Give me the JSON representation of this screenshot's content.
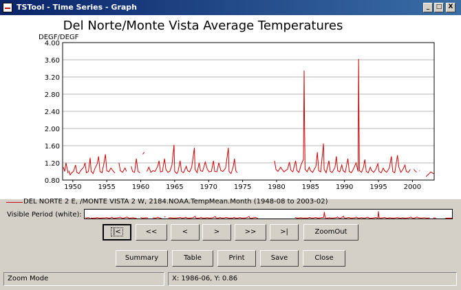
{
  "window": {
    "title": "TSTool - Time Series - Graph",
    "controls": [
      "_",
      "□",
      "X"
    ]
  },
  "chart_data": {
    "type": "line",
    "title": "Del Norte/Monte Vista Average Temperatures",
    "ylabel": "DEGF/DEGF",
    "xlabel": "",
    "ylim": [
      0.8,
      4.0
    ],
    "xlim": [
      1948.5,
      2003.2
    ],
    "y_ticks": [
      "0.80",
      "1.20",
      "1.60",
      "2.00",
      "2.40",
      "2.80",
      "3.20",
      "3.60",
      "4.00"
    ],
    "x_ticks": [
      "1950",
      "1955",
      "1960",
      "1965",
      "1970",
      "1975",
      "1980",
      "1985",
      "1990",
      "1995",
      "2000"
    ],
    "grid": true,
    "series": [
      {
        "name": "DEL NORTE 2 E, /MONTE VISTA 2 W, 2184.NOAA.TempMean.Month (1948-08 to 2003-02)",
        "color": "#d00000",
        "segments": [
          [
            [
              1948.6,
              1.1
            ],
            [
              1948.8,
              1.0
            ],
            [
              1949.0,
              1.2
            ],
            [
              1949.1,
              1.12
            ],
            [
              1949.3,
              0.96
            ]
          ],
          [
            [
              1949.4,
              1.02
            ],
            [
              1949.6,
              0.92
            ],
            [
              1949.9,
              0.98
            ],
            [
              1950.1,
              1.0
            ],
            [
              1950.4,
              1.15
            ],
            [
              1950.6,
              0.98
            ],
            [
              1950.9,
              0.95
            ],
            [
              1951.2,
              1.03
            ],
            [
              1951.6,
              1.1
            ],
            [
              1951.8,
              1.2
            ],
            [
              1952.0,
              0.97
            ],
            [
              1952.3,
              1.0
            ],
            [
              1952.55,
              1.32
            ],
            [
              1952.7,
              1.0
            ],
            [
              1953.0,
              0.95
            ],
            [
              1953.2,
              1.05
            ],
            [
              1953.6,
              1.18
            ],
            [
              1953.8,
              1.35
            ],
            [
              1954.0,
              1.0
            ],
            [
              1954.3,
              0.97
            ],
            [
              1954.6,
              1.2
            ],
            [
              1954.8,
              1.4
            ],
            [
              1955.0,
              1.02
            ],
            [
              1955.3,
              0.99
            ],
            [
              1955.6,
              1.08
            ],
            [
              1955.9,
              1.02
            ],
            [
              1956.2,
              0.96
            ]
          ],
          [
            [
              1956.8,
              1.2
            ],
            [
              1957.0,
              1.02
            ],
            [
              1957.3,
              0.98
            ],
            [
              1957.7,
              1.08
            ],
            [
              1957.9,
              1.0
            ]
          ],
          [
            [
              1958.6,
              1.12
            ],
            [
              1958.8,
              1.0
            ],
            [
              1959.1,
              0.98
            ],
            [
              1959.35,
              1.3
            ],
            [
              1959.6,
              1.0
            ],
            [
              1959.9,
              0.97
            ]
          ],
          [
            [
              1960.3,
              1.4
            ],
            [
              1960.5,
              1.45
            ]
          ],
          [
            [
              1960.9,
              1.0
            ],
            [
              1961.2,
              1.1
            ],
            [
              1961.5,
              0.98
            ],
            [
              1961.8,
              1.02
            ],
            [
              1962.1,
              1.0
            ],
            [
              1962.5,
              1.12
            ],
            [
              1962.7,
              1.25
            ],
            [
              1962.9,
              0.99
            ],
            [
              1963.2,
              1.0
            ],
            [
              1963.5,
              1.3
            ],
            [
              1963.7,
              1.05
            ],
            [
              1964.0,
              0.98
            ],
            [
              1964.3,
              1.01
            ],
            [
              1964.6,
              1.15
            ],
            [
              1964.9,
              1.62
            ],
            [
              1965.0,
              1.0
            ],
            [
              1965.3,
              0.95
            ],
            [
              1965.5,
              1.0
            ],
            [
              1965.8,
              1.25
            ],
            [
              1966.0,
              1.0
            ],
            [
              1966.3,
              0.97
            ],
            [
              1966.7,
              1.12
            ],
            [
              1966.9,
              1.02
            ],
            [
              1967.2,
              0.99
            ],
            [
              1967.5,
              1.1
            ],
            [
              1967.9,
              1.55
            ],
            [
              1968.0,
              1.05
            ],
            [
              1968.3,
              0.97
            ],
            [
              1968.6,
              1.2
            ],
            [
              1968.8,
              1.02
            ],
            [
              1969.1,
              1.0
            ],
            [
              1969.5,
              1.22
            ],
            [
              1969.8,
              1.05
            ],
            [
              1970.1,
              0.99
            ],
            [
              1970.4,
              1.0
            ],
            [
              1970.7,
              1.25
            ],
            [
              1970.9,
              1.0
            ],
            [
              1971.2,
              0.99
            ],
            [
              1971.5,
              1.2
            ],
            [
              1971.8,
              1.02
            ],
            [
              1972.1,
              1.0
            ],
            [
              1972.5,
              1.08
            ],
            [
              1972.9,
              1.55
            ],
            [
              1973.0,
              1.0
            ],
            [
              1973.3,
              0.95
            ],
            [
              1973.6,
              1.1
            ],
            [
              1973.8,
              1.3
            ],
            [
              1974.0,
              1.02
            ],
            [
              1974.2,
              0.97
            ]
          ],
          [
            [
              1979.7,
              1.25
            ],
            [
              1979.9,
              1.05
            ],
            [
              1980.2,
              1.0
            ],
            [
              1980.6,
              1.1
            ],
            [
              1980.8,
              1.05
            ],
            [
              1981.1,
              0.99
            ],
            [
              1981.3,
              1.02
            ],
            [
              1981.6,
              1.05
            ],
            [
              1981.9,
              1.22
            ],
            [
              1982.1,
              1.03
            ],
            [
              1982.4,
              0.99
            ],
            [
              1982.8,
              1.25
            ],
            [
              1983.0,
              1.02
            ],
            [
              1983.3,
              0.98
            ],
            [
              1983.6,
              1.15
            ],
            [
              1983.95,
              1.28
            ],
            [
              1984.05,
              3.35
            ],
            [
              1984.1,
              2.45
            ],
            [
              1984.2,
              1.05
            ],
            [
              1984.5,
              0.99
            ],
            [
              1984.8,
              1.1
            ],
            [
              1985.0,
              1.02
            ],
            [
              1985.3,
              0.98
            ],
            [
              1985.8,
              1.12
            ],
            [
              1986.0,
              1.45
            ],
            [
              1986.2,
              1.02
            ],
            [
              1986.5,
              0.99
            ],
            [
              1986.9,
              1.65
            ],
            [
              1987.0,
              1.05
            ],
            [
              1987.3,
              0.97
            ],
            [
              1987.7,
              1.25
            ],
            [
              1987.9,
              1.0
            ],
            [
              1988.2,
              0.98
            ],
            [
              1988.6,
              1.1
            ],
            [
              1988.8,
              1.35
            ],
            [
              1989.0,
              1.02
            ],
            [
              1989.3,
              0.99
            ],
            [
              1989.6,
              1.15
            ],
            [
              1989.8,
              1.02
            ],
            [
              1990.1,
              0.98
            ],
            [
              1990.5,
              1.3
            ],
            [
              1990.7,
              1.0
            ],
            [
              1991.0,
              0.97
            ],
            [
              1991.3,
              1.05
            ],
            [
              1991.7,
              1.2
            ],
            [
              1992.0,
              1.0
            ],
            [
              1992.08,
              3.62
            ],
            [
              1992.12,
              2.55
            ],
            [
              1992.2,
              1.02
            ],
            [
              1992.5,
              0.98
            ],
            [
              1992.8,
              1.1
            ],
            [
              1993.0,
              1.28
            ],
            [
              1993.2,
              1.0
            ],
            [
              1993.5,
              0.97
            ],
            [
              1993.8,
              1.1
            ],
            [
              1994.0,
              1.02
            ],
            [
              1994.3,
              0.98
            ],
            [
              1994.6,
              1.05
            ],
            [
              1994.9,
              1.18
            ],
            [
              1995.1,
              1.0
            ],
            [
              1995.4,
              0.97
            ],
            [
              1995.7,
              1.08
            ],
            [
              1995.9,
              1.02
            ],
            [
              1996.2,
              0.98
            ],
            [
              1996.6,
              1.08
            ],
            [
              1996.9,
              1.35
            ],
            [
              1997.1,
              1.0
            ],
            [
              1997.4,
              0.97
            ],
            [
              1997.8,
              1.38
            ],
            [
              1998.0,
              1.1
            ],
            [
              1998.3,
              0.98
            ],
            [
              1998.6,
              1.05
            ],
            [
              1998.9,
              1.15
            ],
            [
              1999.1,
              1.0
            ],
            [
              1999.4,
              0.98
            ],
            [
              1999.7,
              1.05
            ]
          ],
          [
            [
              2000.2,
              1.05
            ],
            [
              2000.6,
              0.98
            ]
          ],
          [
            [
              2001.0,
              1.02
            ]
          ],
          [
            [
              2002.0,
              0.88
            ],
            [
              2002.4,
              0.94
            ],
            [
              2002.7,
              0.99
            ],
            [
              2003.0,
              0.96
            ],
            [
              2003.15,
              0.95
            ]
          ]
        ]
      }
    ]
  },
  "legend": {
    "text": "DEL NORTE 2 E, /MONTE VISTA 2 W, 2184.NOAA.TempMean.Month (1948-08 to 2003-02)"
  },
  "overview": {
    "label": "Visible Period (white):"
  },
  "nav_buttons": {
    "first": "|<",
    "prev_page": "<<",
    "prev": "<",
    "next": ">",
    "next_page": ">>",
    "last": ">|",
    "zoom_out": "ZoomOut"
  },
  "action_buttons": {
    "summary": "Summary",
    "table": "Table",
    "print": "Print",
    "save": "Save",
    "close": "Close"
  },
  "status": {
    "mode": "Zoom Mode",
    "coords": "X:  1986-06,  Y:  0.86"
  }
}
